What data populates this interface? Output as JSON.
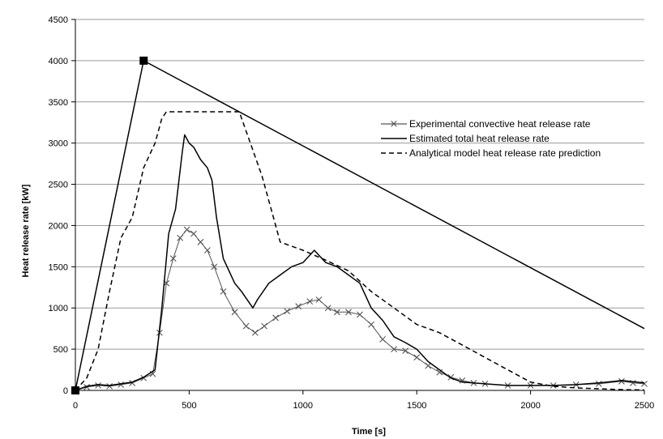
{
  "chart_data": {
    "type": "line",
    "title": "",
    "xlabel": "Time [s]",
    "ylabel": "Heat release rate [kW]",
    "xlim": [
      0,
      2500
    ],
    "ylim": [
      0,
      4500
    ],
    "x_ticks": [
      "0",
      "500",
      "1000",
      "1500",
      "2000",
      "2500"
    ],
    "y_ticks": [
      "0",
      "500",
      "1000",
      "1500",
      "2000",
      "2500",
      "3000",
      "3500",
      "4000",
      "4500"
    ],
    "grid": "horizontal",
    "legend_position": "right",
    "series": [
      {
        "name": "Experimental convective heat release rate",
        "style": "x-markers",
        "color": "#555555",
        "points": [
          [
            0,
            0
          ],
          [
            50,
            40
          ],
          [
            100,
            60
          ],
          [
            150,
            50
          ],
          [
            200,
            70
          ],
          [
            250,
            90
          ],
          [
            300,
            150
          ],
          [
            340,
            200
          ],
          [
            370,
            700
          ],
          [
            400,
            1300
          ],
          [
            430,
            1600
          ],
          [
            460,
            1850
          ],
          [
            490,
            1950
          ],
          [
            520,
            1900
          ],
          [
            550,
            1800
          ],
          [
            580,
            1700
          ],
          [
            610,
            1500
          ],
          [
            650,
            1200
          ],
          [
            700,
            950
          ],
          [
            750,
            780
          ],
          [
            790,
            700
          ],
          [
            830,
            780
          ],
          [
            880,
            880
          ],
          [
            930,
            960
          ],
          [
            980,
            1020
          ],
          [
            1030,
            1080
          ],
          [
            1070,
            1100
          ],
          [
            1110,
            1000
          ],
          [
            1150,
            950
          ],
          [
            1200,
            950
          ],
          [
            1250,
            920
          ],
          [
            1300,
            800
          ],
          [
            1350,
            620
          ],
          [
            1400,
            500
          ],
          [
            1450,
            480
          ],
          [
            1500,
            400
          ],
          [
            1550,
            300
          ],
          [
            1600,
            220
          ],
          [
            1650,
            160
          ],
          [
            1700,
            120
          ],
          [
            1750,
            90
          ],
          [
            1800,
            80
          ],
          [
            1900,
            60
          ],
          [
            2000,
            60
          ],
          [
            2100,
            60
          ],
          [
            2200,
            70
          ],
          [
            2300,
            80
          ],
          [
            2400,
            110
          ],
          [
            2450,
            90
          ],
          [
            2500,
            80
          ]
        ]
      },
      {
        "name": "Estimated total heat release rate",
        "style": "solid",
        "color": "#000000",
        "points": [
          [
            0,
            0
          ],
          [
            300,
            4000
          ],
          [
            2500,
            750
          ]
        ]
      },
      {
        "name": "",
        "style": "solid-noisy",
        "color": "#000000",
        "points": [
          [
            0,
            0
          ],
          [
            50,
            50
          ],
          [
            100,
            70
          ],
          [
            150,
            60
          ],
          [
            200,
            80
          ],
          [
            250,
            100
          ],
          [
            300,
            160
          ],
          [
            350,
            250
          ],
          [
            380,
            1000
          ],
          [
            410,
            1900
          ],
          [
            440,
            2200
          ],
          [
            470,
            2900
          ],
          [
            480,
            3100
          ],
          [
            500,
            3000
          ],
          [
            520,
            2950
          ],
          [
            550,
            2800
          ],
          [
            580,
            2700
          ],
          [
            600,
            2550
          ],
          [
            620,
            2100
          ],
          [
            650,
            1600
          ],
          [
            700,
            1300
          ],
          [
            730,
            1200
          ],
          [
            780,
            1000
          ],
          [
            800,
            1100
          ],
          [
            850,
            1300
          ],
          [
            900,
            1400
          ],
          [
            950,
            1500
          ],
          [
            1000,
            1550
          ],
          [
            1050,
            1700
          ],
          [
            1100,
            1550
          ],
          [
            1150,
            1500
          ],
          [
            1200,
            1400
          ],
          [
            1250,
            1300
          ],
          [
            1300,
            1000
          ],
          [
            1350,
            850
          ],
          [
            1400,
            650
          ],
          [
            1450,
            580
          ],
          [
            1500,
            500
          ],
          [
            1550,
            350
          ],
          [
            1600,
            250
          ],
          [
            1650,
            150
          ],
          [
            1700,
            100
          ],
          [
            1800,
            80
          ],
          [
            1900,
            60
          ],
          [
            2000,
            60
          ],
          [
            2100,
            60
          ],
          [
            2200,
            70
          ],
          [
            2300,
            90
          ],
          [
            2400,
            120
          ],
          [
            2500,
            90
          ]
        ]
      },
      {
        "name": "Analytical model heat release rate prediction",
        "style": "dashed",
        "color": "#000000",
        "points": [
          [
            0,
            0
          ],
          [
            50,
            150
          ],
          [
            100,
            500
          ],
          [
            150,
            1200
          ],
          [
            200,
            1850
          ],
          [
            250,
            2100
          ],
          [
            300,
            2700
          ],
          [
            350,
            3000
          ],
          [
            380,
            3300
          ],
          [
            400,
            3380
          ],
          [
            720,
            3380
          ],
          [
            820,
            2600
          ],
          [
            900,
            1800
          ],
          [
            1000,
            1700
          ],
          [
            1100,
            1580
          ],
          [
            1200,
            1450
          ],
          [
            1300,
            1200
          ],
          [
            1400,
            1000
          ],
          [
            1500,
            800
          ],
          [
            1600,
            700
          ],
          [
            1700,
            550
          ],
          [
            1800,
            400
          ],
          [
            1900,
            250
          ],
          [
            2000,
            100
          ],
          [
            2100,
            50
          ],
          [
            2200,
            30
          ],
          [
            2300,
            20
          ],
          [
            2400,
            10
          ],
          [
            2500,
            5
          ]
        ]
      }
    ],
    "markers": [
      {
        "x": 0,
        "y": 0,
        "shape": "square"
      },
      {
        "x": 300,
        "y": 4000,
        "shape": "square"
      }
    ]
  }
}
